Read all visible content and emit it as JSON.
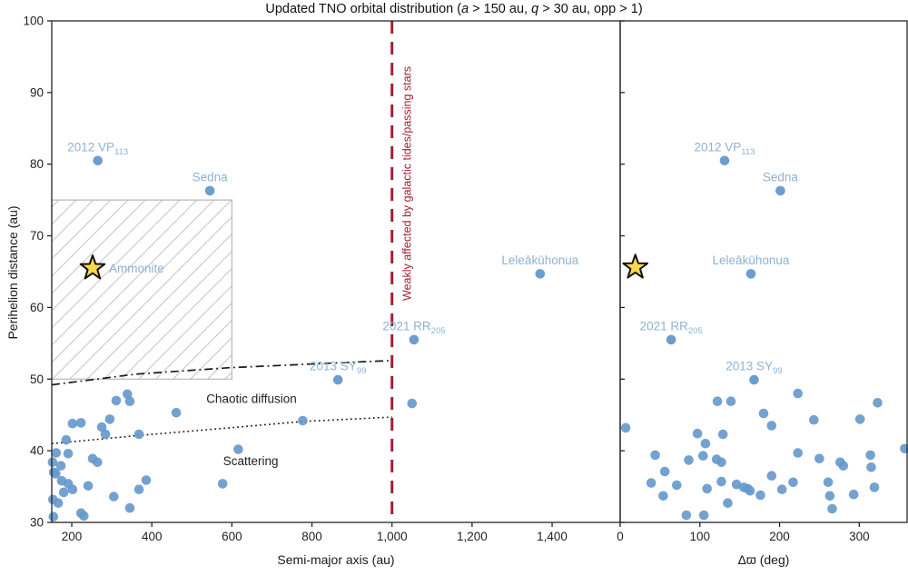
{
  "title": {
    "parts": [
      {
        "t": "Updated TNO orbital distribution (",
        "i": false
      },
      {
        "t": "a",
        "i": true
      },
      {
        "t": " > 150 au, ",
        "i": false
      },
      {
        "t": "q",
        "i": true
      },
      {
        "t": " > 30 au, opp > 1)",
        "i": false
      }
    ]
  },
  "axes": {
    "y_label": "Perihelion distance (au)",
    "y_ticks": [
      30,
      40,
      50,
      60,
      70,
      80,
      90,
      100
    ],
    "y_tick_labels": [
      "30",
      "40",
      "50",
      "60",
      "70",
      "80",
      "90",
      "100"
    ],
    "y_range": [
      30,
      100
    ]
  },
  "colors": {
    "point": "#6598cb",
    "object_label": "#8fb2d4",
    "red": "#a02036",
    "hatch_line": "#cccccc",
    "hatch_border": "#b8b8b8",
    "curve": "#1a1a1a",
    "axis": "#262626",
    "star_fill": "#f8d949",
    "star_stroke": "#111111",
    "annotation_text": "#222222"
  },
  "chart_data": [
    {
      "type": "scatter",
      "panel": "left",
      "xlabel": "Semi-major axis (au)",
      "ylabel": "Perihelion distance (au)",
      "xlim": [
        150,
        1570
      ],
      "ylim": [
        30,
        100
      ],
      "x_ticks": [
        200,
        400,
        600,
        800,
        1000,
        1200,
        1400
      ],
      "x_tick_labels": [
        "200",
        "400",
        "600",
        "800",
        "1,000",
        "1,200",
        "1,400"
      ],
      "points": [
        [
          311,
          47.0
        ],
        [
          339,
          47.9
        ],
        [
          345,
          46.9
        ],
        [
          202,
          43.8
        ],
        [
          223,
          43.9
        ],
        [
          295,
          44.4
        ],
        [
          275,
          43.3
        ],
        [
          284,
          42.3
        ],
        [
          461,
          45.3
        ],
        [
          368,
          42.3
        ],
        [
          186,
          41.5
        ],
        [
          161,
          39.7
        ],
        [
          191,
          39.6
        ],
        [
          152,
          38.4
        ],
        [
          173,
          37.9
        ],
        [
          155,
          37.0
        ],
        [
          160,
          36.8
        ],
        [
          252,
          38.9
        ],
        [
          264,
          38.4
        ],
        [
          241,
          35.1
        ],
        [
          175,
          35.8
        ],
        [
          191,
          35.4
        ],
        [
          202,
          34.6
        ],
        [
          180,
          34.2
        ],
        [
          153,
          33.2
        ],
        [
          166,
          32.7
        ],
        [
          223,
          31.3
        ],
        [
          230,
          30.9
        ],
        [
          154,
          30.8
        ],
        [
          305,
          33.6
        ],
        [
          345,
          32.0
        ],
        [
          368,
          34.6
        ],
        [
          386,
          35.9
        ],
        [
          616,
          40.2
        ],
        [
          577,
          35.4
        ],
        [
          777,
          44.2
        ],
        [
          1050,
          46.6
        ]
      ],
      "named_points": [
        {
          "label": "2012 VP",
          "sub": "113",
          "x": 265,
          "y": 80.5,
          "marker": "dot"
        },
        {
          "label": "Sedna",
          "sub": "",
          "x": 545,
          "y": 76.3,
          "marker": "dot"
        },
        {
          "label": "Leleākūhonua",
          "sub": "",
          "x": 1370,
          "y": 64.7,
          "marker": "dot"
        },
        {
          "label": "2021 RR",
          "sub": "205",
          "x": 1055,
          "y": 55.5,
          "marker": "dot"
        },
        {
          "label": "2013 SY",
          "sub": "99",
          "x": 865,
          "y": 49.9,
          "marker": "dot"
        },
        {
          "label": "Ammonite",
          "sub": "",
          "x": 252,
          "y": 65.5,
          "marker": "star",
          "label_side": "right"
        }
      ],
      "region_box": {
        "x": [
          150,
          600
        ],
        "y": [
          50,
          75
        ],
        "style": "hatched"
      },
      "curves": [
        {
          "name": "chaotic-diffusion-boundary",
          "style": "dashdot",
          "points": [
            [
              150,
              49.2
            ],
            [
              360,
              50.7
            ],
            [
              595,
              51.6
            ],
            [
              880,
              52.3
            ],
            [
              1000,
              52.6
            ]
          ]
        },
        {
          "name": "scattering-boundary",
          "style": "dotted",
          "points": [
            [
              150,
              41.0
            ],
            [
              360,
              42.1
            ],
            [
              595,
              43.2
            ],
            [
              780,
              44.1
            ],
            [
              1000,
              44.7
            ]
          ]
        }
      ],
      "vline": {
        "x": 1000,
        "style": "dashed",
        "label": "Weakly affected by galactic tides/passing stars"
      },
      "text_annotations": [
        {
          "t": "Chaotic diffusion",
          "x": 649,
          "y": 46.7
        },
        {
          "t": "Scattering",
          "x": 647,
          "y": 38.0
        }
      ]
    },
    {
      "type": "scatter",
      "panel": "right",
      "xlabel": "Δϖ (deg)",
      "ylabel": "Perihelion distance (au)",
      "xlim": [
        0,
        360
      ],
      "ylim": [
        30,
        100
      ],
      "x_ticks": [
        0,
        100,
        200,
        300
      ],
      "x_tick_labels": [
        "0",
        "100",
        "200",
        "300"
      ],
      "points": [
        [
          122,
          46.9
        ],
        [
          139,
          46.9
        ],
        [
          223,
          48.0
        ],
        [
          180,
          45.2
        ],
        [
          190,
          43.5
        ],
        [
          243,
          44.3
        ],
        [
          301,
          44.4
        ],
        [
          323,
          46.7
        ],
        [
          7,
          43.2
        ],
        [
          44,
          39.4
        ],
        [
          56,
          37.1
        ],
        [
          39,
          35.5
        ],
        [
          54,
          33.7
        ],
        [
          71,
          35.2
        ],
        [
          86,
          38.7
        ],
        [
          97,
          42.4
        ],
        [
          107,
          41.0
        ],
        [
          104,
          39.3
        ],
        [
          121,
          38.8
        ],
        [
          127,
          38.4
        ],
        [
          109,
          34.7
        ],
        [
          127,
          35.7
        ],
        [
          129,
          42.3
        ],
        [
          135,
          32.7
        ],
        [
          83,
          31.0
        ],
        [
          105,
          31.0
        ],
        [
          146,
          35.3
        ],
        [
          155,
          34.9
        ],
        [
          160,
          34.7
        ],
        [
          163,
          34.4
        ],
        [
          176,
          33.8
        ],
        [
          190,
          36.5
        ],
        [
          203,
          34.6
        ],
        [
          217,
          35.6
        ],
        [
          223,
          39.7
        ],
        [
          250,
          38.9
        ],
        [
          261,
          35.6
        ],
        [
          263,
          33.7
        ],
        [
          266,
          31.9
        ],
        [
          276,
          38.4
        ],
        [
          280,
          37.9
        ],
        [
          293,
          33.9
        ],
        [
          314,
          39.4
        ],
        [
          315,
          37.7
        ],
        [
          319,
          34.9
        ],
        [
          357,
          40.3
        ]
      ],
      "named_points": [
        {
          "label": "2012 VP",
          "sub": "113",
          "x": 131,
          "y": 80.5,
          "marker": "dot"
        },
        {
          "label": "Sedna",
          "sub": "",
          "x": 201,
          "y": 76.3,
          "marker": "dot"
        },
        {
          "label": "Leleākūhonua",
          "sub": "",
          "x": 164,
          "y": 64.7,
          "marker": "dot"
        },
        {
          "label": "2021 RR",
          "sub": "205",
          "x": 64,
          "y": 55.5,
          "marker": "dot"
        },
        {
          "label": "2013 SY",
          "sub": "99",
          "x": 168,
          "y": 49.9,
          "marker": "dot"
        },
        {
          "label": "",
          "sub": "",
          "x": 19,
          "y": 65.6,
          "marker": "star"
        }
      ],
      "curves": [],
      "text_annotations": []
    }
  ]
}
